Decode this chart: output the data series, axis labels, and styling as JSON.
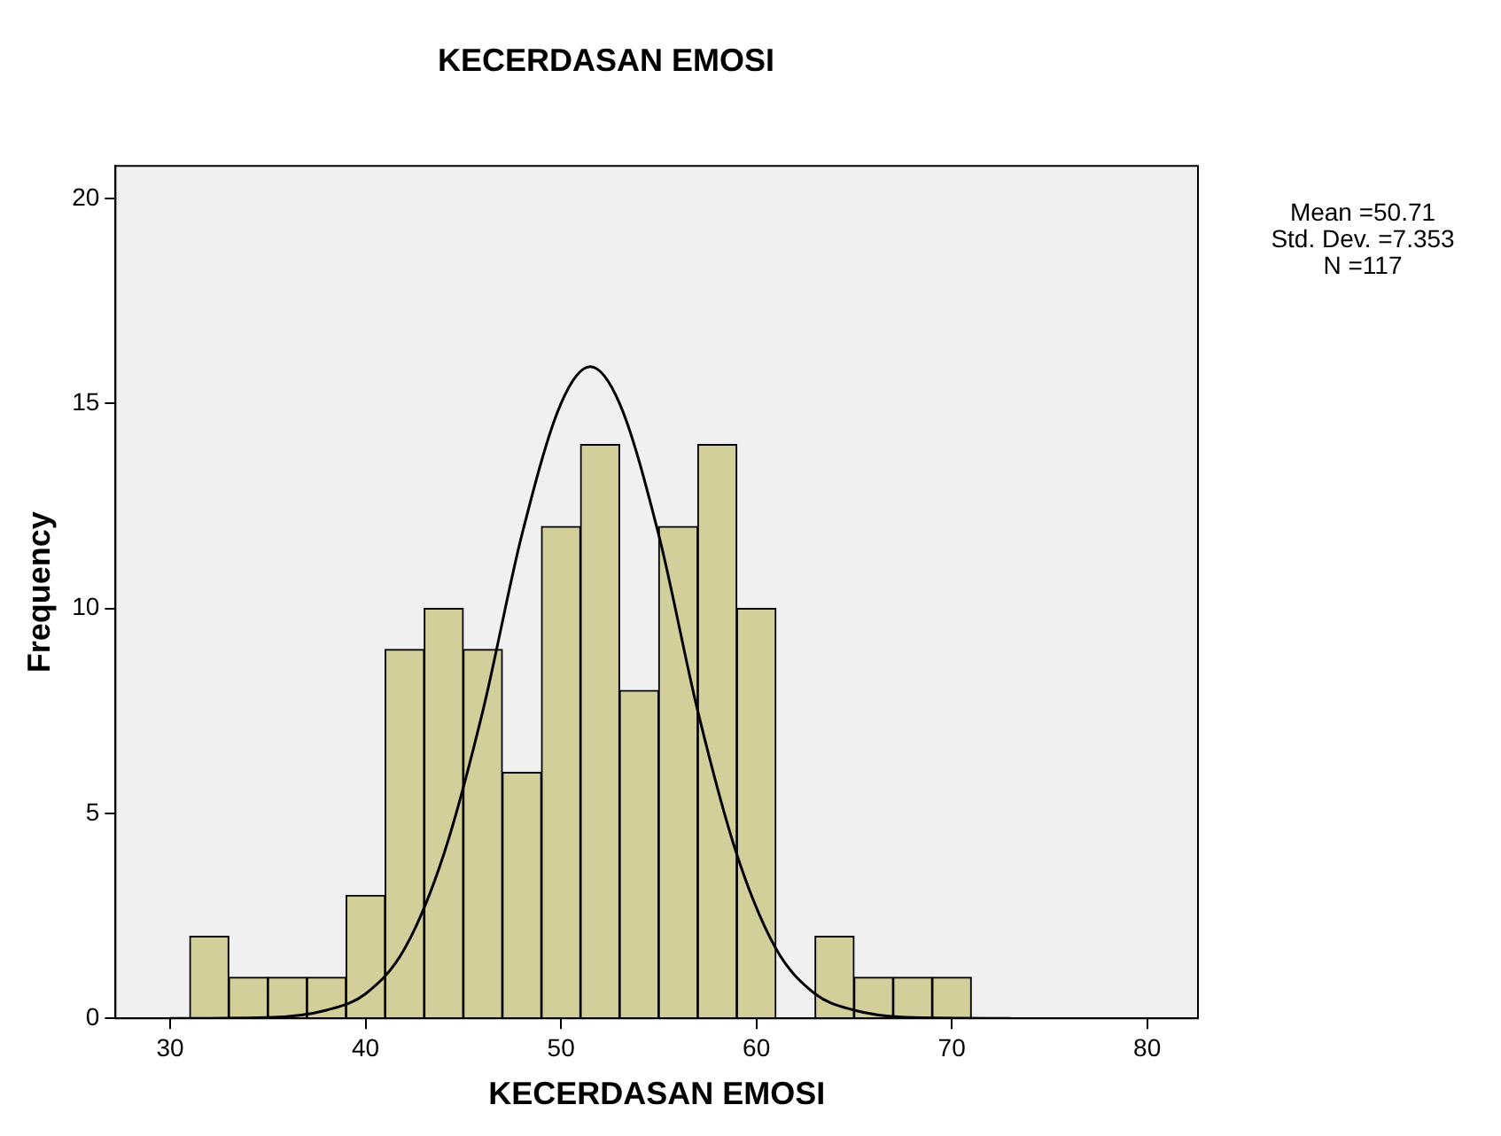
{
  "chart_data": {
    "type": "histogram",
    "title": "KECERDASAN EMOSI",
    "xlabel": "KECERDASAN EMOSI",
    "ylabel": "Frequency",
    "bins": [
      31,
      33,
      35,
      37,
      39,
      41,
      43,
      45,
      47,
      49,
      51,
      53,
      55,
      57,
      59,
      61,
      63,
      65,
      67,
      69,
      71
    ],
    "values": [
      2,
      1,
      1,
      1,
      3,
      9,
      10,
      9,
      6,
      12,
      14,
      8,
      12,
      14,
      10,
      0,
      2,
      1,
      1,
      1
    ],
    "color": "#d3cf9b",
    "series": [
      {
        "type": "line",
        "color": "#000000",
        "x": [
          30,
          35,
          38,
          40,
          42,
          44,
          46,
          48,
          50,
          51.5,
          53,
          55,
          57,
          59,
          61,
          63,
          65,
          68,
          73
        ],
        "values": [
          0,
          0.02,
          0.2,
          0.6,
          1.7,
          4,
          7.5,
          11.8,
          15,
          15.9,
          15,
          11.8,
          7.5,
          4,
          1.7,
          0.6,
          0.2,
          0.02,
          0
        ]
      }
    ],
    "xlim": [
      27.2,
      82.6
    ],
    "xticks": [
      30,
      40,
      50,
      60,
      70,
      80
    ],
    "ylim": [
      0,
      20.8
    ],
    "yticks": [
      0,
      5,
      10,
      15,
      20
    ],
    "grid": false,
    "legend": false,
    "marker": "none",
    "annotations": [
      "Mean =50.71",
      "Std. Dev. =7.353",
      "N =117"
    ]
  }
}
